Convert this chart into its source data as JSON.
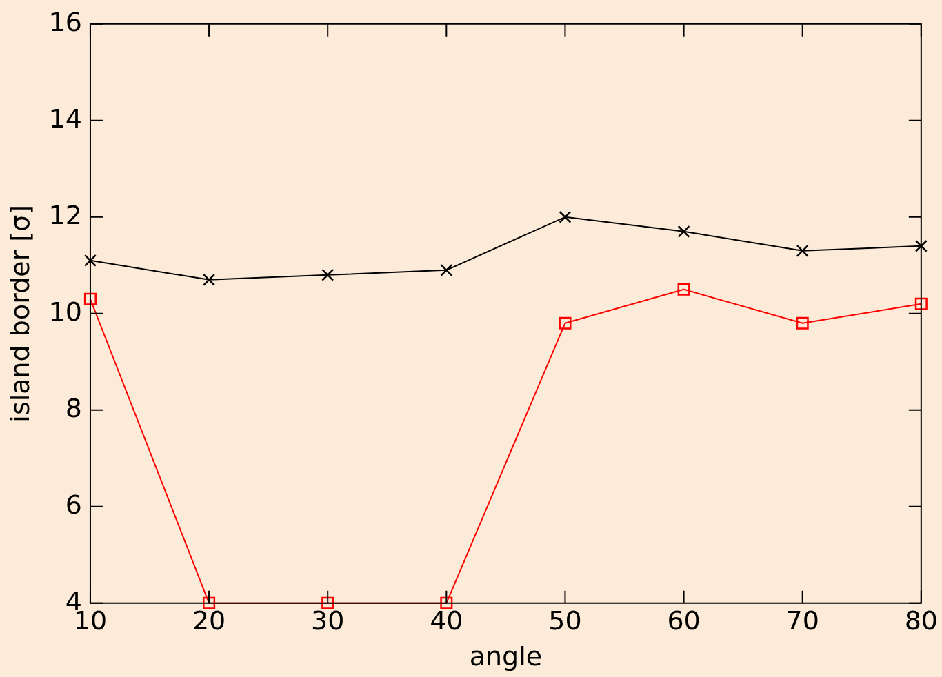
{
  "chart_data": {
    "type": "line",
    "xlabel": "angle",
    "ylabel": "island border [σ]",
    "x": [
      10,
      20,
      30,
      40,
      50,
      60,
      70,
      80
    ],
    "series": [
      {
        "color": "#000000",
        "marker": "cross",
        "values": [
          11.1,
          10.7,
          10.8,
          10.9,
          12.0,
          11.7,
          11.3,
          11.4
        ]
      },
      {
        "color": "#ff0000",
        "marker": "square",
        "values": [
          10.3,
          4,
          4,
          4,
          9.8,
          10.5,
          9.8,
          10.2
        ]
      }
    ],
    "xlim": [
      10,
      80
    ],
    "xticks": [
      10,
      20,
      30,
      40,
      50,
      60,
      70,
      80
    ],
    "ylim": [
      4,
      16
    ],
    "yticks": [
      4,
      6,
      8,
      10,
      12,
      14,
      16
    ],
    "grid": false,
    "legend": false
  }
}
